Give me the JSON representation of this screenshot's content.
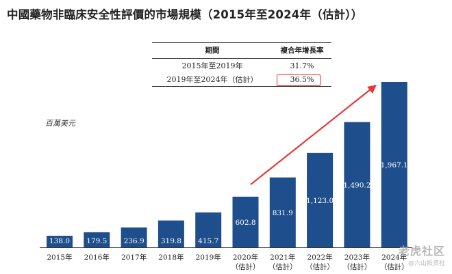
{
  "chart_data": {
    "type": "bar",
    "title": "中國藥物非臨床安全性評價的市場規模（2015年至2024年（估計））",
    "ylabel": "百萬美元",
    "xlabel": "",
    "categories": [
      [
        "2015年"
      ],
      [
        "2016年"
      ],
      [
        "2017年"
      ],
      [
        "2018年"
      ],
      [
        "2019年"
      ],
      [
        "2020年",
        "（估計）"
      ],
      [
        "2021年",
        "（估計）"
      ],
      [
        "2022年",
        "（估計）"
      ],
      [
        "2023年",
        "（估計）"
      ],
      [
        "2024年",
        "（估計）"
      ]
    ],
    "values": [
      138.0,
      179.5,
      236.9,
      319.8,
      415.7,
      602.8,
      831.9,
      1123.0,
      1490.2,
      1967.1
    ],
    "value_labels": [
      "138.0",
      "179.5",
      "236.9",
      "319.8",
      "415.7",
      "602.8",
      "831.9",
      "1,123.0",
      "1,490.2",
      "1,967.1"
    ],
    "ylim": [
      0,
      2000
    ],
    "bar_color": "#1f4e8c",
    "grid": false,
    "annotation_arrow_color": "#e53935"
  },
  "cagr_table": {
    "headers": [
      "期間",
      "複合年增長率"
    ],
    "rows": [
      {
        "period": "2015年至2019年",
        "rate": "31.7%"
      },
      {
        "period": "2019年至2024年（估計）",
        "rate": "36.5%"
      }
    ],
    "highlight_color": "#e02a2a"
  },
  "watermark": {
    "logo": "老虎社区",
    "sub": "@六山投资社"
  }
}
